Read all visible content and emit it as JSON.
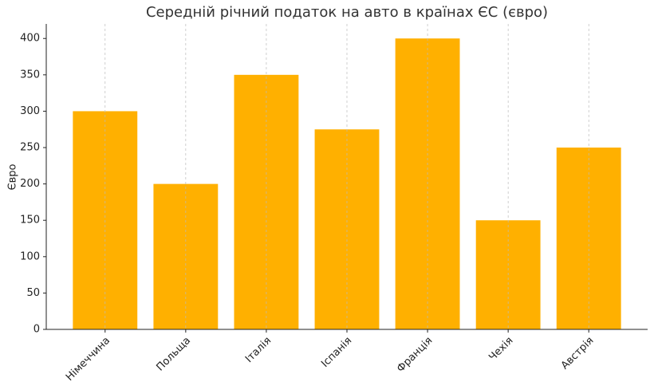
{
  "chart_data": {
    "type": "bar",
    "title": "Середній річний податок на авто в країнах ЄС (євро)",
    "y_label": "Євро",
    "categories": [
      "Німеччина",
      "Польща",
      "Італія",
      "Іспанія",
      "Франція",
      "Чехія",
      "Австрія"
    ],
    "values": [
      300,
      200,
      350,
      275,
      400,
      150,
      250
    ],
    "color": "#ffb000",
    "ylim": [
      0,
      420
    ],
    "yticks": [
      0,
      50,
      100,
      150,
      200,
      250,
      300,
      350,
      400
    ],
    "grid": "x"
  }
}
